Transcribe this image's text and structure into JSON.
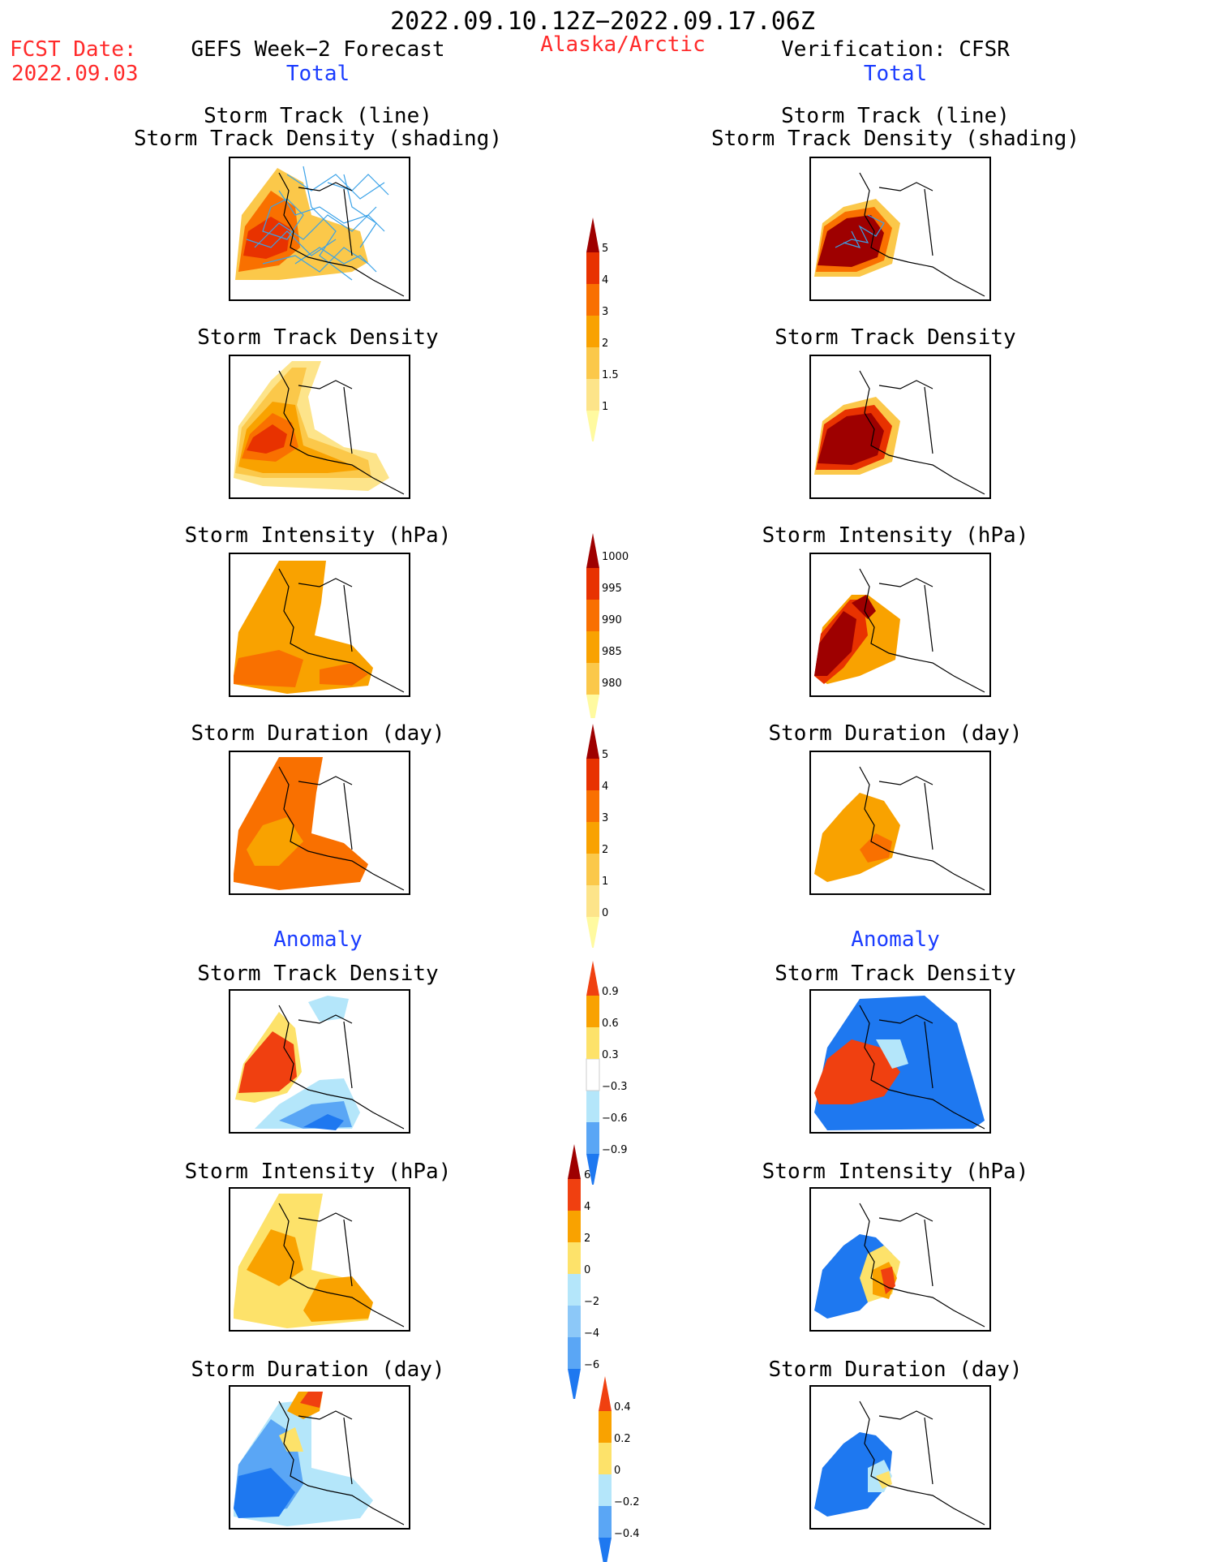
{
  "header": {
    "period": "2022.09.10.12Z−2022.09.17.06Z",
    "fcst_label": "FCST Date:",
    "fcst_date": "2022.09.03",
    "left_title": "GEFS Week−2 Forecast",
    "left_sub": "Total",
    "region": "Alaska/Arctic",
    "right_title": "Verification: CFSR",
    "right_sub": "Total"
  },
  "sections": {
    "anomaly_left": "Anomaly",
    "anomaly_right": "Anomaly"
  },
  "panels": {
    "track_line_1": "Storm Track (line)",
    "track_line_2": "Storm Track Density (shading)",
    "density": "Storm Track Density",
    "intensity": "Storm Intensity (hPa)",
    "duration": "Storm Duration (day)"
  },
  "colorbars": {
    "density": {
      "labels": [
        "5",
        "4",
        "3",
        "2",
        "1.5",
        "1"
      ],
      "colors": [
        "#fffaa0",
        "#fde48a",
        "#fbc84a",
        "#f9a200",
        "#f97000",
        "#e83200",
        "#9e0000"
      ]
    },
    "intensity": {
      "labels": [
        "1000",
        "995",
        "990",
        "985",
        "980"
      ],
      "colors": [
        "#fffaa0",
        "#fbc84a",
        "#f9a200",
        "#f97000",
        "#e83200",
        "#9e0000"
      ]
    },
    "duration": {
      "labels": [
        "5",
        "4",
        "3",
        "2",
        "1",
        "0"
      ],
      "colors": [
        "#fffaa0",
        "#fde48a",
        "#fbc84a",
        "#f9a200",
        "#f97000",
        "#e83200",
        "#9e0000"
      ]
    },
    "density_anom": {
      "labels": [
        "0.9",
        "0.6",
        "0.3",
        "−0.3",
        "−0.6",
        "−0.9"
      ],
      "colors": [
        "#1e78f0",
        "#5aa6f5",
        "#b4e6fa",
        "#ffffff",
        "#fde26a",
        "#f9a200",
        "#f04010"
      ]
    },
    "intensity_anom": {
      "labels": [
        "6",
        "4",
        "2",
        "0",
        "−2",
        "−4",
        "−6"
      ],
      "colors": [
        "#1e78f0",
        "#5aa6f5",
        "#8cc8f8",
        "#b4e6fa",
        "#fde26a",
        "#f9a200",
        "#f04010",
        "#9e0000"
      ]
    },
    "duration_anom": {
      "labels": [
        "0.4",
        "0.2",
        "0",
        "−0.2",
        "−0.4"
      ],
      "colors": [
        "#1e78f0",
        "#5aa6f5",
        "#b4e6fa",
        "#fde26a",
        "#f9a200",
        "#f04010"
      ]
    }
  }
}
